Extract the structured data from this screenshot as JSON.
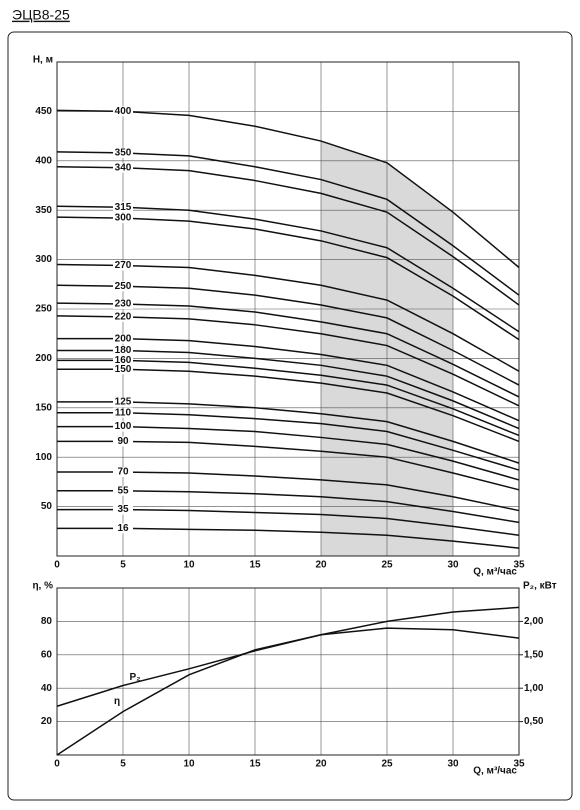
{
  "chart_data": [
    {
      "type": "line",
      "title": "ЭЦВ8-25",
      "y_label": "H, м",
      "x_label": "Q, м³/час",
      "x": [
        0,
        5,
        10,
        15,
        20,
        25,
        30,
        35
      ],
      "xlim": [
        0,
        35
      ],
      "ylim": [
        0,
        500
      ],
      "xticks": [
        0,
        5,
        10,
        15,
        20,
        25,
        30,
        35
      ],
      "yticks": [
        50,
        100,
        150,
        200,
        250,
        300,
        350,
        400,
        450
      ],
      "grid": true,
      "color": "#111111",
      "highlight_x": [
        20,
        30
      ],
      "highlight_color": "#d9d9d9",
      "series": [
        {
          "name": "400",
          "values": [
            451,
            450,
            446,
            435,
            420,
            398,
            348,
            292
          ]
        },
        {
          "name": "350",
          "values": [
            409,
            408,
            405,
            394,
            381,
            361,
            314,
            264
          ]
        },
        {
          "name": "340",
          "values": [
            394,
            393,
            390,
            380,
            367,
            348,
            303,
            254
          ]
        },
        {
          "name": "315",
          "values": [
            354,
            353,
            350,
            341,
            329,
            312,
            271,
            227
          ]
        },
        {
          "name": "300",
          "values": [
            343,
            342,
            339,
            331,
            319,
            302,
            263,
            219
          ]
        },
        {
          "name": "270",
          "values": [
            295,
            294,
            292,
            284,
            274,
            259,
            225,
            187
          ]
        },
        {
          "name": "250",
          "values": [
            274,
            273,
            271,
            264,
            254,
            241,
            208,
            173
          ]
        },
        {
          "name": "230",
          "values": [
            256,
            255,
            253,
            247,
            237,
            225,
            194,
            161
          ]
        },
        {
          "name": "220",
          "values": [
            243,
            242,
            240,
            234,
            225,
            213,
            184,
            152
          ]
        },
        {
          "name": "200",
          "values": [
            220,
            220,
            218,
            212,
            204,
            193,
            166,
            137
          ]
        },
        {
          "name": "180",
          "values": [
            208,
            208,
            206,
            200,
            193,
            182,
            157,
            129
          ]
        },
        {
          "name": "160",
          "values": [
            198,
            198,
            196,
            190,
            183,
            173,
            149,
            122
          ]
        },
        {
          "name": "150",
          "values": [
            189,
            189,
            187,
            182,
            175,
            165,
            142,
            116
          ]
        },
        {
          "name": "125",
          "values": [
            156,
            156,
            154,
            150,
            144,
            136,
            116,
            94
          ]
        },
        {
          "name": "110",
          "values": [
            145,
            145,
            143,
            139,
            134,
            126,
            107,
            87
          ]
        },
        {
          "name": "100",
          "values": [
            131,
            131,
            129,
            126,
            120,
            113,
            96,
            77
          ]
        },
        {
          "name": "90",
          "values": [
            116,
            116,
            115,
            111,
            106,
            100,
            84,
            67
          ]
        },
        {
          "name": "70",
          "values": [
            85,
            85,
            84,
            81,
            77,
            72,
            60,
            46
          ]
        },
        {
          "name": "55",
          "values": [
            66,
            66,
            65,
            63,
            60,
            55,
            45,
            34
          ]
        },
        {
          "name": "35",
          "values": [
            47,
            47,
            46,
            44,
            42,
            38,
            30,
            21
          ]
        },
        {
          "name": "16",
          "values": [
            28,
            28,
            27,
            26,
            24,
            21,
            15,
            8
          ]
        }
      ]
    },
    {
      "type": "line",
      "y_label": "η, %",
      "y2_label": "P₂, кВт",
      "x_label": "Q, м³/час",
      "x": [
        0,
        5,
        10,
        15,
        20,
        25,
        30,
        35
      ],
      "xlim": [
        0,
        35
      ],
      "ylim": [
        0,
        100
      ],
      "y2lim": [
        0,
        2.5
      ],
      "xticks": [
        0,
        5,
        10,
        15,
        20,
        25,
        30,
        35
      ],
      "yticks": [
        20,
        40,
        60,
        80
      ],
      "y2ticks": [
        {
          "value": 0.5,
          "label": "0,50"
        },
        {
          "value": 1.0,
          "label": "1,00"
        },
        {
          "value": 1.5,
          "label": "1,50"
        },
        {
          "value": 2.0,
          "label": "2,00"
        }
      ],
      "grid": true,
      "color": "#111111",
      "series": [
        {
          "name": "η",
          "values": [
            0,
            26,
            48,
            63,
            72,
            76,
            75,
            70
          ]
        },
        {
          "name": "P₂",
          "axis": "y2",
          "values": [
            0.73,
            1.04,
            1.29,
            1.56,
            1.8,
            2.0,
            2.14,
            2.21
          ]
        }
      ]
    }
  ]
}
